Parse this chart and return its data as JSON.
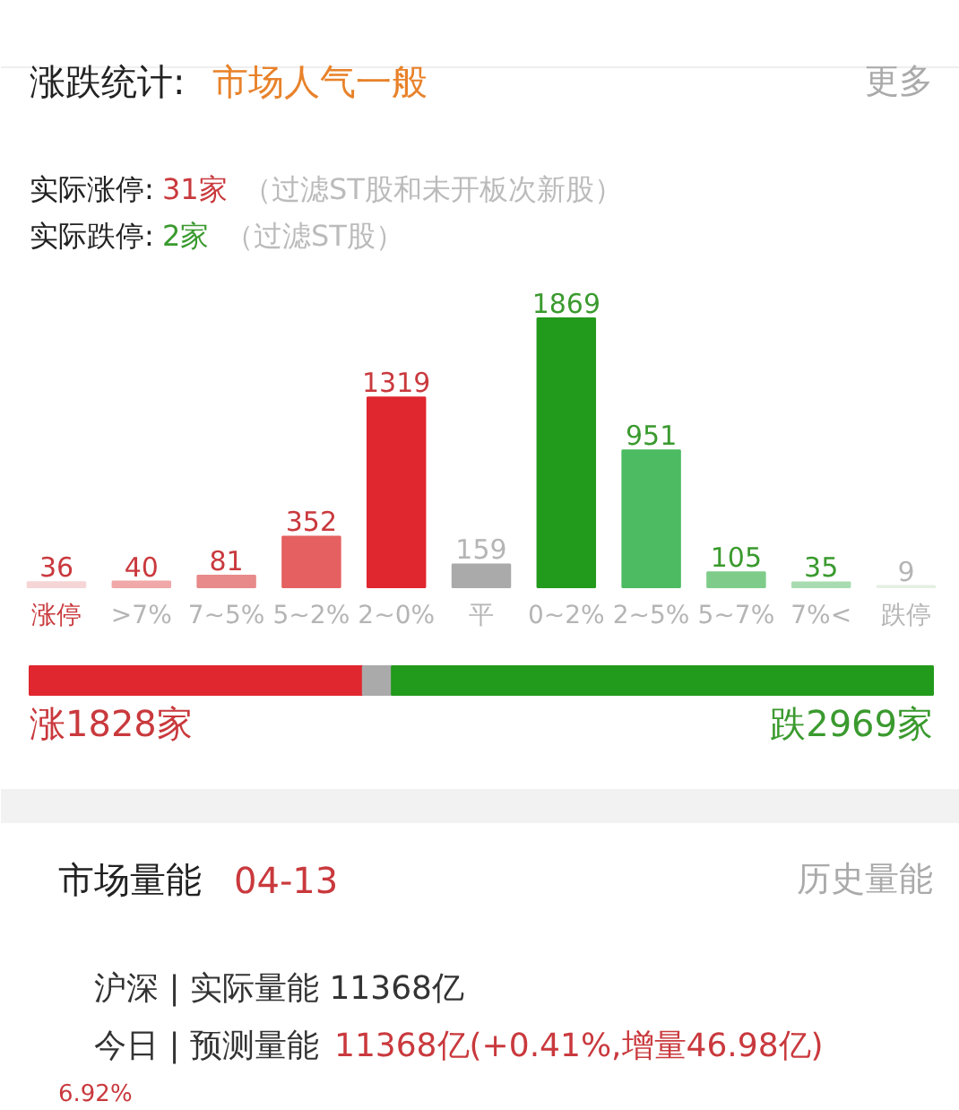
{
  "chart_data": [
    {
      "type": "bar",
      "title": "涨跌统计:",
      "subtitle": "市场人气一般",
      "annotations": [
        "更多",
        "实际涨停:",
        "31家",
        "（过滤ST股和未开板次新股）",
        "实际跌停:",
        "2家",
        "（过滤ST股）"
      ],
      "categories": [
        "涨停",
        ">7%",
        "7~5%",
        "5~2%",
        "2~0%",
        "平",
        "0~2%",
        "2~5%",
        "5~7%",
        "7%<",
        "跌停"
      ],
      "values": [
        36,
        40,
        81,
        352,
        1319,
        159,
        1869,
        951,
        105,
        35,
        9
      ],
      "colors": [
        "#f5d5d5",
        "#f0a8a8",
        "#e88a8a",
        "#e56060",
        "#e0272f",
        "#aaaaaa",
        "#229a1c",
        "#4cbb62",
        "#7fcc8a",
        "#a8dcb0",
        "#e3f0e3"
      ],
      "data_labels": true
    },
    {
      "type": "bar",
      "orientation": "horizontal",
      "stacked": true,
      "categories": [
        null
      ],
      "series": [
        {
          "color": "#e0272f",
          "values": [
            1828
          ],
          "value_labels": [
            "涨1828家"
          ]
        },
        {
          "color": "#aaaaaa",
          "values": [
            159
          ],
          "value_labels": [
            null
          ]
        },
        {
          "color": "#229a1c",
          "values": [
            2969
          ],
          "value_labels": [
            "跌2969家"
          ]
        }
      ]
    },
    {
      "type": "other",
      "title": "市场量能",
      "subtitle": "04-13",
      "annotations": [
        "历史量能",
        "沪深 | 实际量能 11368亿",
        "今日 | 预测量能",
        "11368亿(+0.41%,增量46.98亿)",
        "6.92%"
      ]
    }
  ]
}
